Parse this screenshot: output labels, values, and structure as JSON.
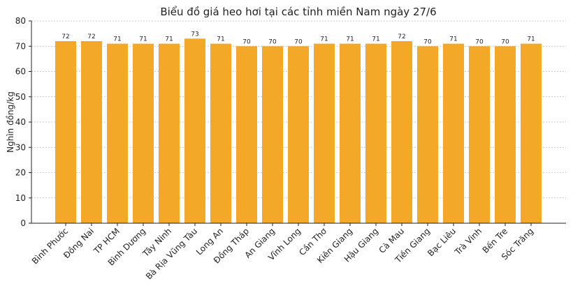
{
  "chart_data": {
    "type": "bar",
    "title": "Biểu đồ giá heo hơi tại các tỉnh miền Nam ngày 27/6",
    "ylabel": "Nghìn đồng/kg",
    "categories": [
      "Bình Phước",
      "Đồng Nai",
      "TP HCM",
      "Bình Dương",
      "Tây Ninh",
      "Bà Rịa  Vũng Tàu",
      "Long An",
      "Đồng Tháp",
      "An Giang",
      "Vĩnh Long",
      "Cần Thơ",
      "Kiên Giang",
      "Hậu Giang",
      "Cà Mau",
      "Tiền Giang",
      "Bạc Liêu",
      "Trà Vinh",
      "Bến Tre",
      "Sóc Trăng"
    ],
    "values": [
      72,
      72,
      71,
      71,
      71,
      73,
      71,
      70,
      70,
      70,
      71,
      71,
      71,
      72,
      70,
      71,
      70,
      70,
      71
    ],
    "color": "#f4a828",
    "ylim": [
      0,
      80
    ],
    "yticks": [
      0,
      10,
      20,
      30,
      40,
      50,
      60,
      70,
      80
    ],
    "grid": true
  }
}
